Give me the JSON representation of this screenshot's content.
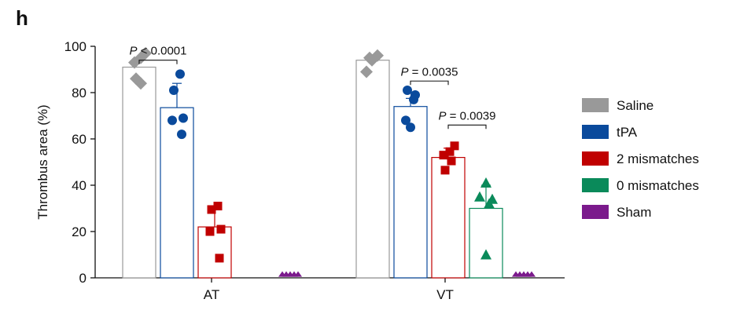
{
  "panel_label": "h",
  "chart_data": {
    "type": "bar",
    "categories": [
      "AT",
      "VT"
    ],
    "ylabel": "Thrombus area (%)",
    "xlabel": "",
    "ylim": [
      0,
      100
    ],
    "yticks": [
      "0",
      "20",
      "40",
      "60",
      "80",
      "100"
    ],
    "legend_position": "right",
    "series": [
      {
        "name": "Saline",
        "color": "#999999",
        "marker": "diamond",
        "values": [
          91,
          94
        ],
        "error": [
          0,
          0
        ],
        "points": [
          [
            97,
            95,
            93,
            86,
            84
          ],
          [
            96,
            95,
            94,
            89
          ]
        ]
      },
      {
        "name": "tPA",
        "color": "#0a4a9c",
        "marker": "circle",
        "values": [
          73.5,
          74
        ],
        "error": [
          10.5,
          3.5
        ],
        "points": [
          [
            88,
            81,
            69,
            68,
            62
          ],
          [
            81,
            79,
            77,
            68,
            65
          ]
        ]
      },
      {
        "name": "2 mismatches",
        "color": "#c00000",
        "marker": "square",
        "values": [
          22,
          52
        ],
        "error": [
          8,
          4
        ],
        "points": [
          [
            31,
            29.5,
            21,
            20,
            8.5
          ],
          [
            57,
            54.5,
            53,
            50.5,
            46.5
          ]
        ]
      },
      {
        "name": "0 mismatches",
        "color": "#0a8a5a",
        "marker": "triangle",
        "values": [
          null,
          30
        ],
        "error": [
          0,
          10
        ],
        "points": [
          [],
          [
            41,
            35,
            34,
            32,
            10
          ]
        ]
      },
      {
        "name": "Sham",
        "color": "#7b1a8c",
        "marker": "triangle",
        "values": [
          0.5,
          0.5
        ],
        "error": [
          0,
          0
        ],
        "points": [
          [
            1.5,
            1.5,
            1.5,
            1.5,
            1.5
          ],
          [
            1.5,
            1.5,
            1.5,
            1.5,
            1.5
          ]
        ]
      }
    ],
    "annotations": [
      {
        "category": "AT",
        "from": "Saline",
        "to": "tPA",
        "p_symbol": "P",
        "p_rest": " < 0.0001",
        "y": 94
      },
      {
        "category": "VT",
        "from": "tPA",
        "to": "2 mismatches",
        "p_symbol": "P",
        "p_rest": " = 0.0035",
        "y": 85
      },
      {
        "category": "VT",
        "from": "2 mismatches",
        "to": "0 mismatches",
        "p_symbol": "P",
        "p_rest": " = 0.0039",
        "y": 66
      }
    ]
  }
}
